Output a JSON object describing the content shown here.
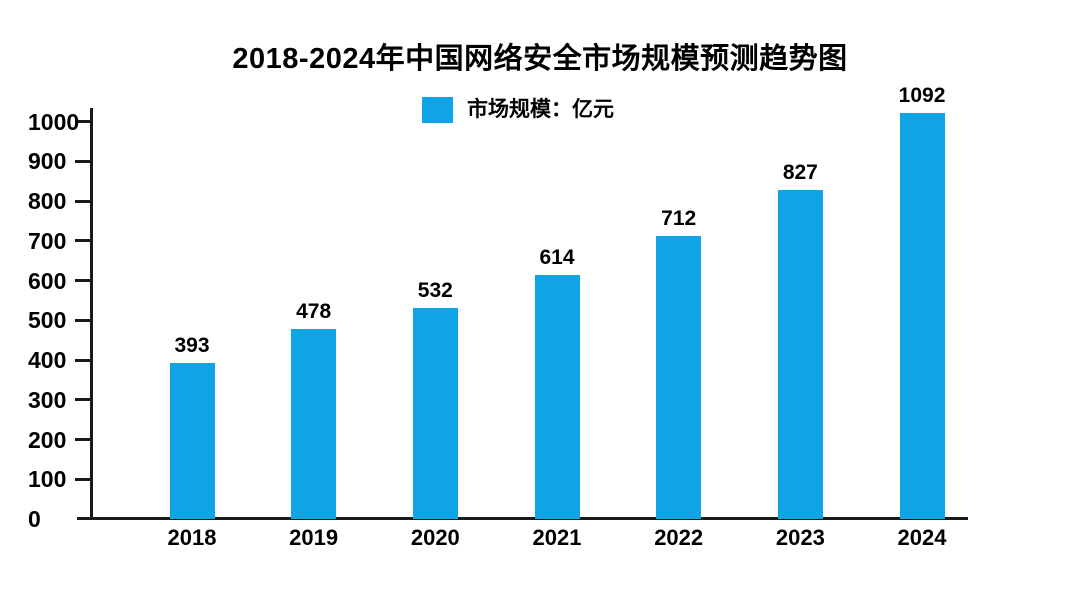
{
  "chart": {
    "title": "2018-2024年中国网络安全市场规模预测趋势图"
  },
  "legend": {
    "label": "市场规模：亿元",
    "swatch_color": "#0fa4e4"
  },
  "chart_data": {
    "type": "bar",
    "title": "2018-2024年中国网络安全市场规模预测趋势图",
    "categories": [
      "2018",
      "2019",
      "2020",
      "2021",
      "2022",
      "2023",
      "2024"
    ],
    "values": [
      393,
      478,
      532,
      614,
      712,
      827,
      1092
    ],
    "series_label": "市场规模：亿元",
    "xlabel": "",
    "ylabel": "",
    "ylim": [
      0,
      1000
    ],
    "yticks": [
      0,
      100,
      200,
      300,
      400,
      500,
      600,
      700,
      800,
      900,
      1000
    ],
    "grid": false,
    "legend_position": "top-center",
    "value_labels": true,
    "bar_color": "#0fa4e4",
    "axis_color": "#1a1a1a",
    "text_color": "#000000",
    "background_color": "#ffffff"
  }
}
